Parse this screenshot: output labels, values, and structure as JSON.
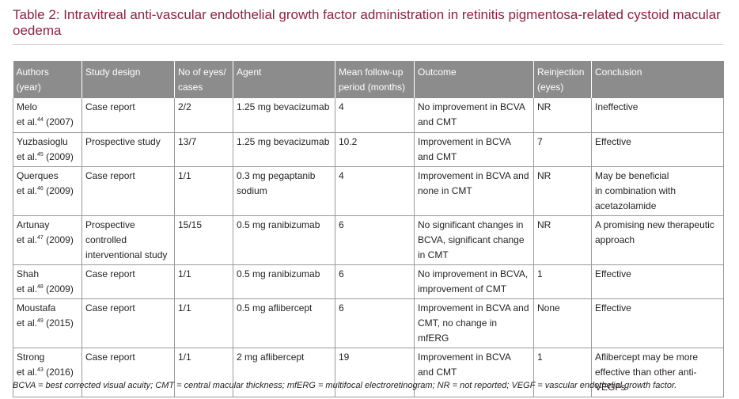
{
  "title": "Table 2: Intravitreal anti-vascular endothelial growth factor administration in retinitis pigmentosa-related cystoid macular oedema",
  "table": {
    "headers": [
      [
        "Authors",
        "(year)"
      ],
      [
        "Study design"
      ],
      [
        "No of eyes/",
        "cases"
      ],
      [
        "Agent"
      ],
      [
        "Mean follow-up",
        "period (months)"
      ],
      [
        "Outcome"
      ],
      [
        "Reinjection",
        "(eyes)"
      ],
      [
        "Conclusion"
      ]
    ],
    "rows": [
      {
        "author": {
          "name": "Melo",
          "etal": "et al.",
          "ref": "44",
          "year": "(2007)"
        },
        "cells": [
          [
            "Case report"
          ],
          [
            "2/2"
          ],
          [
            "1.25 mg bevacizumab"
          ],
          [
            "4"
          ],
          [
            "No improvement in BCVA",
            "and CMT"
          ],
          [
            "NR"
          ],
          [
            "Ineffective"
          ]
        ]
      },
      {
        "author": {
          "name": "Yuzbasioglu",
          "etal": "et al.",
          "ref": "45",
          "year": "(2009)"
        },
        "cells": [
          [
            "Prospective study"
          ],
          [
            "13/7"
          ],
          [
            "1.25 mg bevacizumab"
          ],
          [
            "10.2"
          ],
          [
            "Improvement in BCVA",
            "and CMT"
          ],
          [
            "7"
          ],
          [
            "Effective"
          ]
        ]
      },
      {
        "author": {
          "name": "Querques",
          "etal": "et al.",
          "ref": "46",
          "year": "(2009)"
        },
        "cells": [
          [
            "Case report"
          ],
          [
            "1/1"
          ],
          [
            "0.3 mg pegaptanib",
            "sodium"
          ],
          [
            "4"
          ],
          [
            "Improvement in BCVA and",
            "none in CMT"
          ],
          [
            "NR"
          ],
          [
            "May be beneficial",
            "in combination with",
            "acetazolamide"
          ]
        ]
      },
      {
        "author": {
          "name": "Artunay",
          "etal": "et al.",
          "ref": "47",
          "year": "(2009)"
        },
        "cells": [
          [
            "Prospective",
            "controlled",
            "interventional study"
          ],
          [
            "15/15"
          ],
          [
            "0.5 mg ranibizumab"
          ],
          [
            "6"
          ],
          [
            "No significant changes in",
            "BCVA, significant change",
            "in CMT"
          ],
          [
            "NR"
          ],
          [
            "A promising new therapeutic",
            "approach"
          ]
        ]
      },
      {
        "author": {
          "name": "Shah",
          "etal": "et al.",
          "ref": "48",
          "year": "(2009)"
        },
        "cells": [
          [
            "Case report"
          ],
          [
            "1/1"
          ],
          [
            "0.5 mg ranibizumab"
          ],
          [
            "6"
          ],
          [
            "No improvement in BCVA,",
            "improvement of CMT"
          ],
          [
            "1"
          ],
          [
            "Effective"
          ]
        ]
      },
      {
        "author": {
          "name": "Moustafa",
          "etal": "et al.",
          "ref": "49",
          "year": "(2015)"
        },
        "cells": [
          [
            "Case report"
          ],
          [
            "1/1"
          ],
          [
            "0.5 mg aflibercept"
          ],
          [
            "6"
          ],
          [
            "Improvement in BCVA and",
            "CMT, no change in mfERG"
          ],
          [
            "None"
          ],
          [
            "Effective"
          ]
        ]
      },
      {
        "author": {
          "name": "Strong",
          "etal": "et al.",
          "ref": "43",
          "year": "(2016)"
        },
        "cells": [
          [
            "Case report"
          ],
          [
            "1/1"
          ],
          [
            "2 mg aflibercept"
          ],
          [
            "19"
          ],
          [
            "Improvement in BCVA",
            "and CMT"
          ],
          [
            "1"
          ],
          [
            "Aflibercept may be more",
            "effective than other anti-",
            "VEGFs"
          ]
        ]
      }
    ]
  },
  "footnote": "BCVA = best corrected visual acuity; CMT = central macular thickness; mfERG = multifocal electroretinogram; NR = not reported; VEGF = vascular endothelial growth factor.",
  "colors": {
    "title": "#8c2148",
    "header_bg": "#8c8c8c",
    "header_text": "#ffffff",
    "border": "#9a9a9a",
    "body_text": "#231f20"
  }
}
